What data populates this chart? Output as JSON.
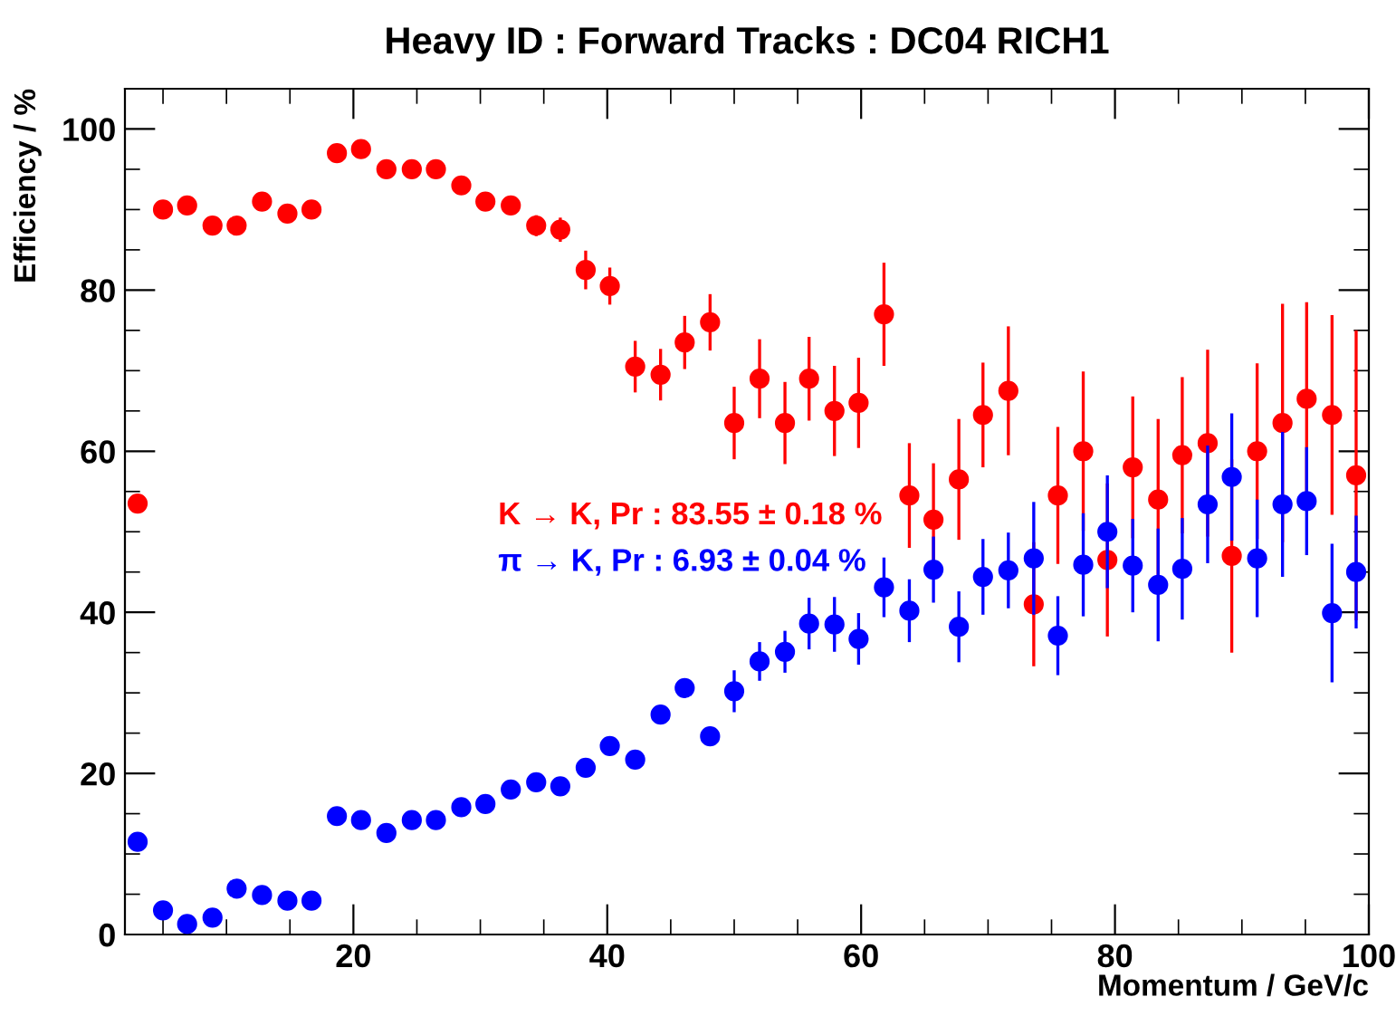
{
  "chart_data": {
    "type": "scatter",
    "title": "Heavy ID : Forward Tracks : DC04 RICH1",
    "xlabel": "Momentum / GeV/c",
    "ylabel": "Efficiency / %",
    "x": [
      3.0,
      5.0,
      6.9,
      8.9,
      10.8,
      12.8,
      14.8,
      16.7,
      18.7,
      20.6,
      22.6,
      24.6,
      26.5,
      28.5,
      30.4,
      32.4,
      34.4,
      36.3,
      38.3,
      40.2,
      42.2,
      44.2,
      46.1,
      48.1,
      50.0,
      52.0,
      54.0,
      55.9,
      57.9,
      59.8,
      61.8,
      63.8,
      65.7,
      67.7,
      69.6,
      71.6,
      73.6,
      75.5,
      77.5,
      79.4,
      81.4,
      83.4,
      85.3,
      87.3,
      89.2,
      91.2,
      93.2,
      95.1,
      97.1,
      99.0
    ],
    "series": [
      {
        "name": "K → K, Pr : 83.55 ± 0.18 %",
        "color": "#ff0000",
        "values": [
          53.5,
          90,
          90.5,
          88,
          88,
          91,
          89.5,
          90,
          97,
          97.5,
          95,
          95,
          95,
          93,
          91,
          90.5,
          88,
          87.5,
          82.5,
          80.5,
          70.5,
          69.5,
          73.5,
          76,
          63.5,
          69,
          63.5,
          69,
          65,
          66,
          77,
          54.5,
          51.5,
          56.5,
          64.5,
          67.5,
          41,
          54.5,
          60,
          46.5,
          58,
          54,
          59.5,
          61,
          47,
          60,
          63.5,
          66.5,
          64.5,
          57
        ],
        "errors": [
          0.5,
          0.5,
          0.5,
          0.5,
          0.5,
          0.5,
          0.5,
          0.5,
          0.6,
          0.6,
          0.6,
          0.6,
          0.6,
          0.6,
          0.6,
          0.6,
          1.3,
          1.5,
          2.4,
          2.3,
          3.2,
          3.2,
          3.3,
          3.5,
          4.5,
          4.9,
          5.1,
          5.2,
          5.6,
          5.6,
          6.4,
          6.5,
          7,
          7.5,
          6.5,
          8,
          7.7,
          8.5,
          9.9,
          9.5,
          8.8,
          10,
          9.7,
          11.6,
          12,
          10.9,
          14.8,
          12,
          12.4,
          18
        ]
      },
      {
        "name": "π → K, Pr : 6.93 ± 0.04 %",
        "color": "#0000ff",
        "values": [
          11.5,
          3.0,
          1.3,
          2.1,
          5.7,
          4.9,
          4.2,
          4.2,
          14.7,
          14.2,
          12.6,
          14.2,
          14.2,
          15.8,
          16.2,
          18.0,
          18.9,
          18.4,
          20.7,
          23.4,
          21.7,
          27.3,
          30.6,
          24.6,
          30.2,
          33.9,
          35.1,
          38.6,
          38.5,
          36.7,
          43.1,
          40.2,
          45.3,
          38.2,
          44.4,
          45.2,
          46.7,
          37.1,
          45.9,
          50.0,
          45.8,
          43.4,
          45.4,
          53.4,
          56.8,
          46.7,
          53.4,
          53.8,
          39.9,
          45.0
        ],
        "errors": [
          0.5,
          0.5,
          0.5,
          0.5,
          0.5,
          0.5,
          0.5,
          0.5,
          0.6,
          0.6,
          0.6,
          0.6,
          0.6,
          0.6,
          0.6,
          0.6,
          0.6,
          0.6,
          0.9,
          0.9,
          0.9,
          1.2,
          1.2,
          1.2,
          2.6,
          2.4,
          2.6,
          3.2,
          3.4,
          3.2,
          3.7,
          3.9,
          4.1,
          4.4,
          4.7,
          4.7,
          7,
          4.9,
          6.4,
          7,
          5.8,
          7,
          6.3,
          7.3,
          7.9,
          7.3,
          9,
          6.7,
          8.6,
          7
        ]
      }
    ],
    "xlim": [
      2,
      100
    ],
    "ylim": [
      0,
      105
    ],
    "xticks": [
      20,
      40,
      60,
      80,
      100
    ],
    "yticks": [
      0,
      20,
      40,
      60,
      80,
      100
    ],
    "marker": "circle",
    "grid": false,
    "legend": false
  }
}
